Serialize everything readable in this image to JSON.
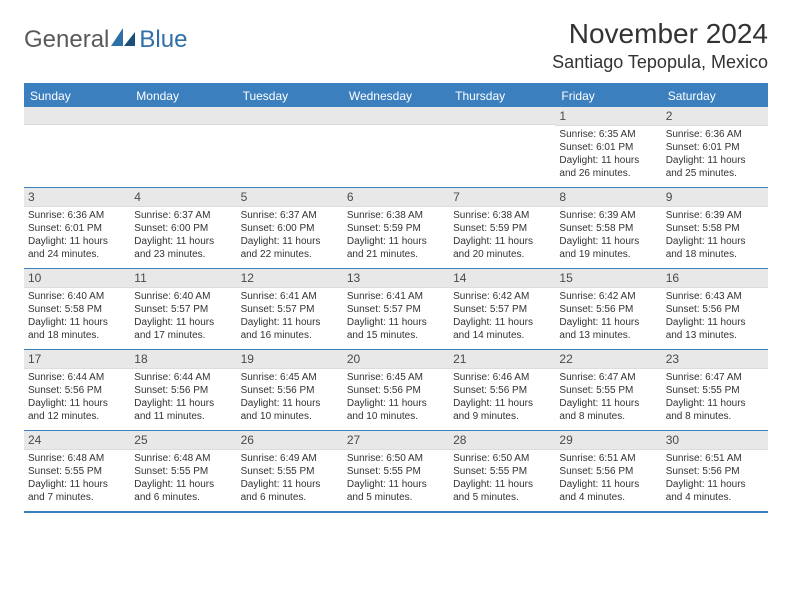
{
  "logo": {
    "general": "General",
    "blue": "Blue"
  },
  "header": {
    "title": "November 2024",
    "location": "Santiago Tepopula, Mexico"
  },
  "colors": {
    "accent": "#3b7fbf",
    "header_bg": "#3b7fbf",
    "daynum_bg": "#e8e8e8",
    "text": "#333333",
    "logo_gray": "#5a5a5a",
    "logo_blue": "#2f6fa8"
  },
  "dayheads": [
    "Sunday",
    "Monday",
    "Tuesday",
    "Wednesday",
    "Thursday",
    "Friday",
    "Saturday"
  ],
  "weeks": [
    [
      {
        "n": "",
        "sr": "",
        "ss": "",
        "dl": ""
      },
      {
        "n": "",
        "sr": "",
        "ss": "",
        "dl": ""
      },
      {
        "n": "",
        "sr": "",
        "ss": "",
        "dl": ""
      },
      {
        "n": "",
        "sr": "",
        "ss": "",
        "dl": ""
      },
      {
        "n": "",
        "sr": "",
        "ss": "",
        "dl": ""
      },
      {
        "n": "1",
        "sr": "Sunrise: 6:35 AM",
        "ss": "Sunset: 6:01 PM",
        "dl": "Daylight: 11 hours and 26 minutes."
      },
      {
        "n": "2",
        "sr": "Sunrise: 6:36 AM",
        "ss": "Sunset: 6:01 PM",
        "dl": "Daylight: 11 hours and 25 minutes."
      }
    ],
    [
      {
        "n": "3",
        "sr": "Sunrise: 6:36 AM",
        "ss": "Sunset: 6:01 PM",
        "dl": "Daylight: 11 hours and 24 minutes."
      },
      {
        "n": "4",
        "sr": "Sunrise: 6:37 AM",
        "ss": "Sunset: 6:00 PM",
        "dl": "Daylight: 11 hours and 23 minutes."
      },
      {
        "n": "5",
        "sr": "Sunrise: 6:37 AM",
        "ss": "Sunset: 6:00 PM",
        "dl": "Daylight: 11 hours and 22 minutes."
      },
      {
        "n": "6",
        "sr": "Sunrise: 6:38 AM",
        "ss": "Sunset: 5:59 PM",
        "dl": "Daylight: 11 hours and 21 minutes."
      },
      {
        "n": "7",
        "sr": "Sunrise: 6:38 AM",
        "ss": "Sunset: 5:59 PM",
        "dl": "Daylight: 11 hours and 20 minutes."
      },
      {
        "n": "8",
        "sr": "Sunrise: 6:39 AM",
        "ss": "Sunset: 5:58 PM",
        "dl": "Daylight: 11 hours and 19 minutes."
      },
      {
        "n": "9",
        "sr": "Sunrise: 6:39 AM",
        "ss": "Sunset: 5:58 PM",
        "dl": "Daylight: 11 hours and 18 minutes."
      }
    ],
    [
      {
        "n": "10",
        "sr": "Sunrise: 6:40 AM",
        "ss": "Sunset: 5:58 PM",
        "dl": "Daylight: 11 hours and 18 minutes."
      },
      {
        "n": "11",
        "sr": "Sunrise: 6:40 AM",
        "ss": "Sunset: 5:57 PM",
        "dl": "Daylight: 11 hours and 17 minutes."
      },
      {
        "n": "12",
        "sr": "Sunrise: 6:41 AM",
        "ss": "Sunset: 5:57 PM",
        "dl": "Daylight: 11 hours and 16 minutes."
      },
      {
        "n": "13",
        "sr": "Sunrise: 6:41 AM",
        "ss": "Sunset: 5:57 PM",
        "dl": "Daylight: 11 hours and 15 minutes."
      },
      {
        "n": "14",
        "sr": "Sunrise: 6:42 AM",
        "ss": "Sunset: 5:57 PM",
        "dl": "Daylight: 11 hours and 14 minutes."
      },
      {
        "n": "15",
        "sr": "Sunrise: 6:42 AM",
        "ss": "Sunset: 5:56 PM",
        "dl": "Daylight: 11 hours and 13 minutes."
      },
      {
        "n": "16",
        "sr": "Sunrise: 6:43 AM",
        "ss": "Sunset: 5:56 PM",
        "dl": "Daylight: 11 hours and 13 minutes."
      }
    ],
    [
      {
        "n": "17",
        "sr": "Sunrise: 6:44 AM",
        "ss": "Sunset: 5:56 PM",
        "dl": "Daylight: 11 hours and 12 minutes."
      },
      {
        "n": "18",
        "sr": "Sunrise: 6:44 AM",
        "ss": "Sunset: 5:56 PM",
        "dl": "Daylight: 11 hours and 11 minutes."
      },
      {
        "n": "19",
        "sr": "Sunrise: 6:45 AM",
        "ss": "Sunset: 5:56 PM",
        "dl": "Daylight: 11 hours and 10 minutes."
      },
      {
        "n": "20",
        "sr": "Sunrise: 6:45 AM",
        "ss": "Sunset: 5:56 PM",
        "dl": "Daylight: 11 hours and 10 minutes."
      },
      {
        "n": "21",
        "sr": "Sunrise: 6:46 AM",
        "ss": "Sunset: 5:56 PM",
        "dl": "Daylight: 11 hours and 9 minutes."
      },
      {
        "n": "22",
        "sr": "Sunrise: 6:47 AM",
        "ss": "Sunset: 5:55 PM",
        "dl": "Daylight: 11 hours and 8 minutes."
      },
      {
        "n": "23",
        "sr": "Sunrise: 6:47 AM",
        "ss": "Sunset: 5:55 PM",
        "dl": "Daylight: 11 hours and 8 minutes."
      }
    ],
    [
      {
        "n": "24",
        "sr": "Sunrise: 6:48 AM",
        "ss": "Sunset: 5:55 PM",
        "dl": "Daylight: 11 hours and 7 minutes."
      },
      {
        "n": "25",
        "sr": "Sunrise: 6:48 AM",
        "ss": "Sunset: 5:55 PM",
        "dl": "Daylight: 11 hours and 6 minutes."
      },
      {
        "n": "26",
        "sr": "Sunrise: 6:49 AM",
        "ss": "Sunset: 5:55 PM",
        "dl": "Daylight: 11 hours and 6 minutes."
      },
      {
        "n": "27",
        "sr": "Sunrise: 6:50 AM",
        "ss": "Sunset: 5:55 PM",
        "dl": "Daylight: 11 hours and 5 minutes."
      },
      {
        "n": "28",
        "sr": "Sunrise: 6:50 AM",
        "ss": "Sunset: 5:55 PM",
        "dl": "Daylight: 11 hours and 5 minutes."
      },
      {
        "n": "29",
        "sr": "Sunrise: 6:51 AM",
        "ss": "Sunset: 5:56 PM",
        "dl": "Daylight: 11 hours and 4 minutes."
      },
      {
        "n": "30",
        "sr": "Sunrise: 6:51 AM",
        "ss": "Sunset: 5:56 PM",
        "dl": "Daylight: 11 hours and 4 minutes."
      }
    ]
  ]
}
